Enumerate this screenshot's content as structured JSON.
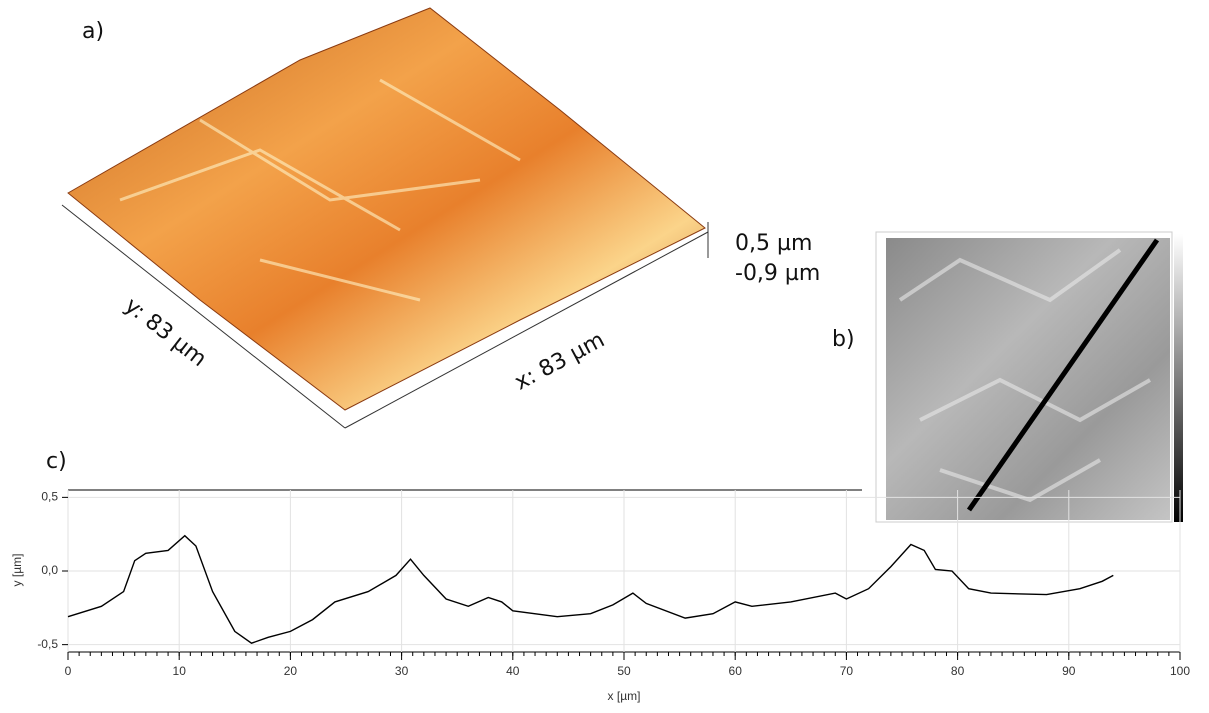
{
  "panel_a": {
    "label": "a)",
    "z_max": "0,5 µm",
    "z_min": "-0,9 µm",
    "y_size": "y: 83 µm",
    "x_size": "x: 83 µm"
  },
  "panel_b": {
    "label": "b)"
  },
  "chart_data": {
    "type": "line",
    "label": "c)",
    "x_label": "x [µm]",
    "y_label": "y [µm]",
    "color": "#000000",
    "x": [
      0,
      3,
      5,
      6,
      7,
      9,
      10.5,
      11.5,
      13,
      15,
      16.5,
      18,
      20,
      22,
      24,
      27,
      29.5,
      30.8,
      32,
      34,
      36,
      37.8,
      39,
      40,
      44,
      47,
      49,
      50.8,
      52,
      55.5,
      58,
      60,
      61.5,
      65,
      69,
      70,
      72,
      74,
      75.8,
      77,
      78,
      79.5,
      81,
      83,
      88,
      91,
      93,
      94
    ],
    "values": [
      -0.31,
      -0.24,
      -0.14,
      0.07,
      0.12,
      0.14,
      0.24,
      0.17,
      -0.14,
      -0.41,
      -0.49,
      -0.45,
      -0.41,
      -0.33,
      -0.21,
      -0.14,
      -0.03,
      0.08,
      -0.03,
      -0.19,
      -0.24,
      -0.18,
      -0.21,
      -0.27,
      -0.31,
      -0.29,
      -0.23,
      -0.15,
      -0.22,
      -0.32,
      -0.29,
      -0.21,
      -0.24,
      -0.21,
      -0.15,
      -0.19,
      -0.12,
      0.03,
      0.18,
      0.14,
      0.01,
      0.0,
      -0.12,
      -0.15,
      -0.16,
      -0.12,
      -0.07,
      -0.03
    ],
    "xlim": [
      0,
      100
    ],
    "xticks": [
      0,
      10,
      20,
      30,
      40,
      50,
      60,
      70,
      80,
      90,
      100
    ],
    "ylim": [
      -0.55,
      0.55
    ],
    "yticks": [
      {
        "value": 0.5,
        "label": "0,5"
      },
      {
        "value": 0.0,
        "label": "0,0"
      },
      {
        "value": -0.5,
        "label": "-0,5"
      }
    ],
    "grid": true
  }
}
